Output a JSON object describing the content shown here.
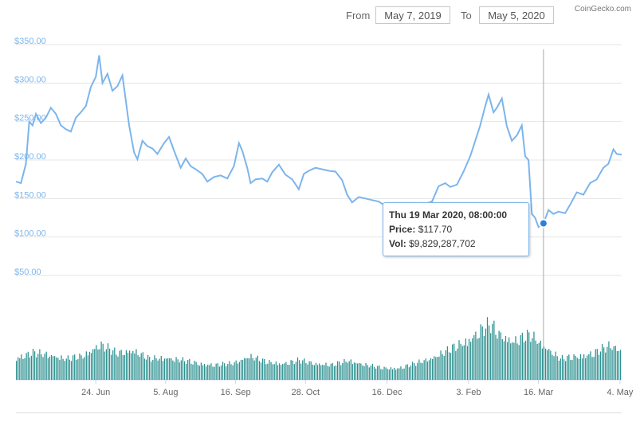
{
  "range_selector": {
    "from_label": "From",
    "from_value": "May 7, 2019",
    "to_label": "To",
    "to_value": "May 5, 2020"
  },
  "credit": "CoinGecko.com",
  "tooltip": {
    "date": "Thu 19 Mar 2020, 08:00:00",
    "price_label": "Price:",
    "price_value": "$117.70",
    "vol_label": "Vol:",
    "vol_value": "$9,829,287,702"
  },
  "colors": {
    "line": "#7cb5ec",
    "volume": "#2b908f",
    "axis_text": "#7cb5ec",
    "grid": "#e6e6e6",
    "marker": "#2f7ed8"
  },
  "chart_data": {
    "type": "line",
    "title": "",
    "x_range": [
      "2019-05-07",
      "2020-05-05"
    ],
    "price_axis": {
      "ticks": [
        "$50.00",
        "$100.00",
        "$150.00",
        "$200.00",
        "$250.00",
        "$300.00",
        "$350.00"
      ],
      "tick_values": [
        50,
        100,
        150,
        200,
        250,
        300,
        350
      ],
      "ylim": [
        50,
        350
      ]
    },
    "x_ticks": [
      {
        "label": "24. Jun",
        "date": "2019-06-24"
      },
      {
        "label": "5. Aug",
        "date": "2019-08-05"
      },
      {
        "label": "16. Sep",
        "date": "2019-09-16"
      },
      {
        "label": "28. Oct",
        "date": "2019-10-28"
      },
      {
        "label": "16. Dec",
        "date": "2019-12-16"
      },
      {
        "label": "3. Feb",
        "date": "2020-02-03"
      },
      {
        "label": "16. Mar",
        "date": "2020-03-16"
      },
      {
        "label": "4. May",
        "date": "2020-05-04"
      }
    ],
    "grid": true,
    "highlight": {
      "date": "2020-03-19",
      "price": 117.7
    },
    "series": [
      {
        "values": [
          [
            "2019-05-07",
            172
          ],
          [
            "2019-05-10",
            170
          ],
          [
            "2019-05-13",
            195
          ],
          [
            "2019-05-15",
            250
          ],
          [
            "2019-05-17",
            245
          ],
          [
            "2019-05-19",
            260
          ],
          [
            "2019-05-22",
            248
          ],
          [
            "2019-05-25",
            255
          ],
          [
            "2019-05-28",
            268
          ],
          [
            "2019-05-31",
            260
          ],
          [
            "2019-06-03",
            245
          ],
          [
            "2019-06-06",
            240
          ],
          [
            "2019-06-09",
            237
          ],
          [
            "2019-06-12",
            255
          ],
          [
            "2019-06-15",
            262
          ],
          [
            "2019-06-18",
            270
          ],
          [
            "2019-06-21",
            295
          ],
          [
            "2019-06-24",
            308
          ],
          [
            "2019-06-26",
            336
          ],
          [
            "2019-06-28",
            300
          ],
          [
            "2019-07-01",
            312
          ],
          [
            "2019-07-04",
            290
          ],
          [
            "2019-07-07",
            296
          ],
          [
            "2019-07-10",
            310
          ],
          [
            "2019-07-14",
            245
          ],
          [
            "2019-07-17",
            210
          ],
          [
            "2019-07-19",
            201
          ],
          [
            "2019-07-22",
            225
          ],
          [
            "2019-07-25",
            218
          ],
          [
            "2019-07-28",
            215
          ],
          [
            "2019-07-31",
            208
          ],
          [
            "2019-08-04",
            222
          ],
          [
            "2019-08-07",
            230
          ],
          [
            "2019-08-10",
            212
          ],
          [
            "2019-08-14",
            190
          ],
          [
            "2019-08-17",
            202
          ],
          [
            "2019-08-20",
            192
          ],
          [
            "2019-08-23",
            188
          ],
          [
            "2019-08-27",
            182
          ],
          [
            "2019-08-30",
            172
          ],
          [
            "2019-09-03",
            178
          ],
          [
            "2019-09-07",
            180
          ],
          [
            "2019-09-11",
            176
          ],
          [
            "2019-09-15",
            192
          ],
          [
            "2019-09-18",
            222
          ],
          [
            "2019-09-20",
            212
          ],
          [
            "2019-09-23",
            190
          ],
          [
            "2019-09-25",
            170
          ],
          [
            "2019-09-28",
            175
          ],
          [
            "2019-10-02",
            176
          ],
          [
            "2019-10-05",
            172
          ],
          [
            "2019-10-08",
            184
          ],
          [
            "2019-10-12",
            194
          ],
          [
            "2019-10-16",
            181
          ],
          [
            "2019-10-20",
            175
          ],
          [
            "2019-10-24",
            162
          ],
          [
            "2019-10-27",
            182
          ],
          [
            "2019-10-30",
            186
          ],
          [
            "2019-11-03",
            190
          ],
          [
            "2019-11-07",
            188
          ],
          [
            "2019-11-11",
            186
          ],
          [
            "2019-11-15",
            185
          ],
          [
            "2019-11-19",
            174
          ],
          [
            "2019-11-22",
            155
          ],
          [
            "2019-11-25",
            145
          ],
          [
            "2019-11-29",
            152
          ],
          [
            "2019-12-03",
            150
          ],
          [
            "2019-12-07",
            148
          ],
          [
            "2019-12-11",
            146
          ],
          [
            "2019-12-14",
            142
          ],
          [
            "2019-12-18",
            135
          ],
          [
            "2019-12-21",
            128
          ],
          [
            "2019-12-25",
            127
          ],
          [
            "2019-12-29",
            131
          ],
          [
            "2020-01-02",
            130
          ],
          [
            "2020-01-05",
            139
          ],
          [
            "2020-01-08",
            143
          ],
          [
            "2020-01-12",
            146
          ],
          [
            "2020-01-16",
            166
          ],
          [
            "2020-01-20",
            170
          ],
          [
            "2020-01-23",
            165
          ],
          [
            "2020-01-27",
            168
          ],
          [
            "2020-01-31",
            185
          ],
          [
            "2020-02-04",
            205
          ],
          [
            "2020-02-07",
            225
          ],
          [
            "2020-02-10",
            245
          ],
          [
            "2020-02-13",
            270
          ],
          [
            "2020-02-15",
            285
          ],
          [
            "2020-02-18",
            262
          ],
          [
            "2020-02-20",
            268
          ],
          [
            "2020-02-23",
            280
          ],
          [
            "2020-02-26",
            244
          ],
          [
            "2020-02-29",
            225
          ],
          [
            "2020-03-03",
            232
          ],
          [
            "2020-03-06",
            245
          ],
          [
            "2020-03-08",
            205
          ],
          [
            "2020-03-10",
            200
          ],
          [
            "2020-03-12",
            130
          ],
          [
            "2020-03-14",
            125
          ],
          [
            "2020-03-16",
            113
          ],
          [
            "2020-03-19",
            117.7
          ],
          [
            "2020-03-22",
            135
          ],
          [
            "2020-03-25",
            130
          ],
          [
            "2020-03-28",
            133
          ],
          [
            "2020-04-01",
            131
          ],
          [
            "2020-04-04",
            142
          ],
          [
            "2020-04-08",
            158
          ],
          [
            "2020-04-12",
            155
          ],
          [
            "2020-04-16",
            170
          ],
          [
            "2020-04-20",
            175
          ],
          [
            "2020-04-24",
            190
          ],
          [
            "2020-04-27",
            195
          ],
          [
            "2020-04-30",
            214
          ],
          [
            "2020-05-02",
            208
          ],
          [
            "2020-05-05",
            207
          ]
        ]
      }
    ],
    "volume_series": {
      "values": [
        [
          "2019-05-07",
          0.3
        ],
        [
          "2019-05-17",
          0.36
        ],
        [
          "2019-05-27",
          0.34
        ],
        [
          "2019-06-06",
          0.28
        ],
        [
          "2019-06-16",
          0.32
        ],
        [
          "2019-06-26",
          0.48
        ],
        [
          "2019-07-06",
          0.36
        ],
        [
          "2019-07-16",
          0.4
        ],
        [
          "2019-07-26",
          0.28
        ],
        [
          "2019-08-05",
          0.3
        ],
        [
          "2019-08-15",
          0.26
        ],
        [
          "2019-08-25",
          0.22
        ],
        [
          "2019-09-04",
          0.2
        ],
        [
          "2019-09-14",
          0.22
        ],
        [
          "2019-09-24",
          0.32
        ],
        [
          "2019-10-04",
          0.24
        ],
        [
          "2019-10-14",
          0.22
        ],
        [
          "2019-10-24",
          0.26
        ],
        [
          "2019-11-03",
          0.22
        ],
        [
          "2019-11-13",
          0.2
        ],
        [
          "2019-11-23",
          0.26
        ],
        [
          "2019-12-03",
          0.2
        ],
        [
          "2019-12-13",
          0.16
        ],
        [
          "2019-12-23",
          0.16
        ],
        [
          "2020-01-02",
          0.22
        ],
        [
          "2020-01-12",
          0.3
        ],
        [
          "2020-01-22",
          0.4
        ],
        [
          "2020-02-01",
          0.52
        ],
        [
          "2020-02-11",
          0.68
        ],
        [
          "2020-02-16",
          0.74
        ],
        [
          "2020-02-21",
          0.62
        ],
        [
          "2020-03-01",
          0.52
        ],
        [
          "2020-03-11",
          0.6
        ],
        [
          "2020-03-19",
          0.46
        ],
        [
          "2020-03-29",
          0.28
        ],
        [
          "2020-04-08",
          0.32
        ],
        [
          "2020-04-18",
          0.36
        ],
        [
          "2020-04-28",
          0.46
        ],
        [
          "2020-05-05",
          0.4
        ]
      ]
    }
  }
}
